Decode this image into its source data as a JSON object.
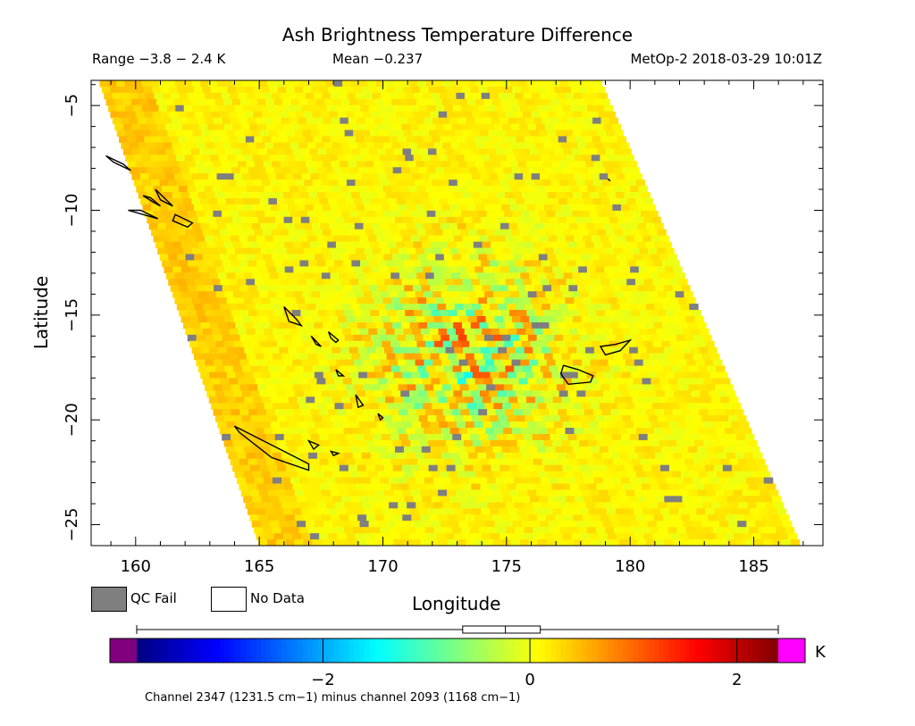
{
  "chart_data": {
    "type": "heatmap",
    "title": "Ash Brightness Temperature Difference",
    "range_text": "Range −3.8 − 2.4 K",
    "mean_text": "Mean −0.237",
    "satellite_text": "MetOp-2 2018-03-29 10:01Z",
    "xlabel": "Longitude",
    "ylabel": "Latitude",
    "xlim": [
      158.2,
      187.8
    ],
    "ylim": [
      -26.0,
      -3.8
    ],
    "xticks": [
      160,
      165,
      170,
      175,
      180,
      185
    ],
    "xticklabels": [
      "160",
      "165",
      "170",
      "175",
      "180",
      "185"
    ],
    "yticks": [
      -5,
      -10,
      -15,
      -20,
      -25
    ],
    "yticklabels": [
      "−5",
      "−10",
      "−15",
      "−20",
      "−25"
    ],
    "swath": {
      "lon_west_at_top": 158.5,
      "lon_east_at_top": 178.8,
      "lon_west_at_bottom": 165.0,
      "lon_east_at_bottom": 186.9,
      "lat_top": -3.8,
      "lat_bottom": -26.0
    },
    "ash_signal_center": {
      "lon": 173.5,
      "lat": -17.0
    },
    "colorbar": {
      "min": -3.8,
      "max": 2.4,
      "unit": "K",
      "ticks": [
        -2,
        0,
        2
      ],
      "ticklabels": [
        "−2",
        "0",
        "2"
      ],
      "colors": [
        "#00007f",
        "#0000ff",
        "#007fff",
        "#00ffff",
        "#7fff7f",
        "#ffff00",
        "#ff7f00",
        "#ff0000",
        "#7f0000"
      ],
      "under_color": "#800080",
      "over_color": "#ff00ff"
    },
    "boxplot": {
      "min": -3.8,
      "q1": -0.65,
      "median": -0.237,
      "q3": 0.1,
      "max": 2.4
    },
    "legend": [
      {
        "label": "QC Fail",
        "color": "#7f7f7f"
      },
      {
        "label": "No Data",
        "color": "#ffffff"
      }
    ],
    "footnote": "Channel 2347 (1231.5 cm−1) minus channel 2093 (1168 cm−1)"
  }
}
